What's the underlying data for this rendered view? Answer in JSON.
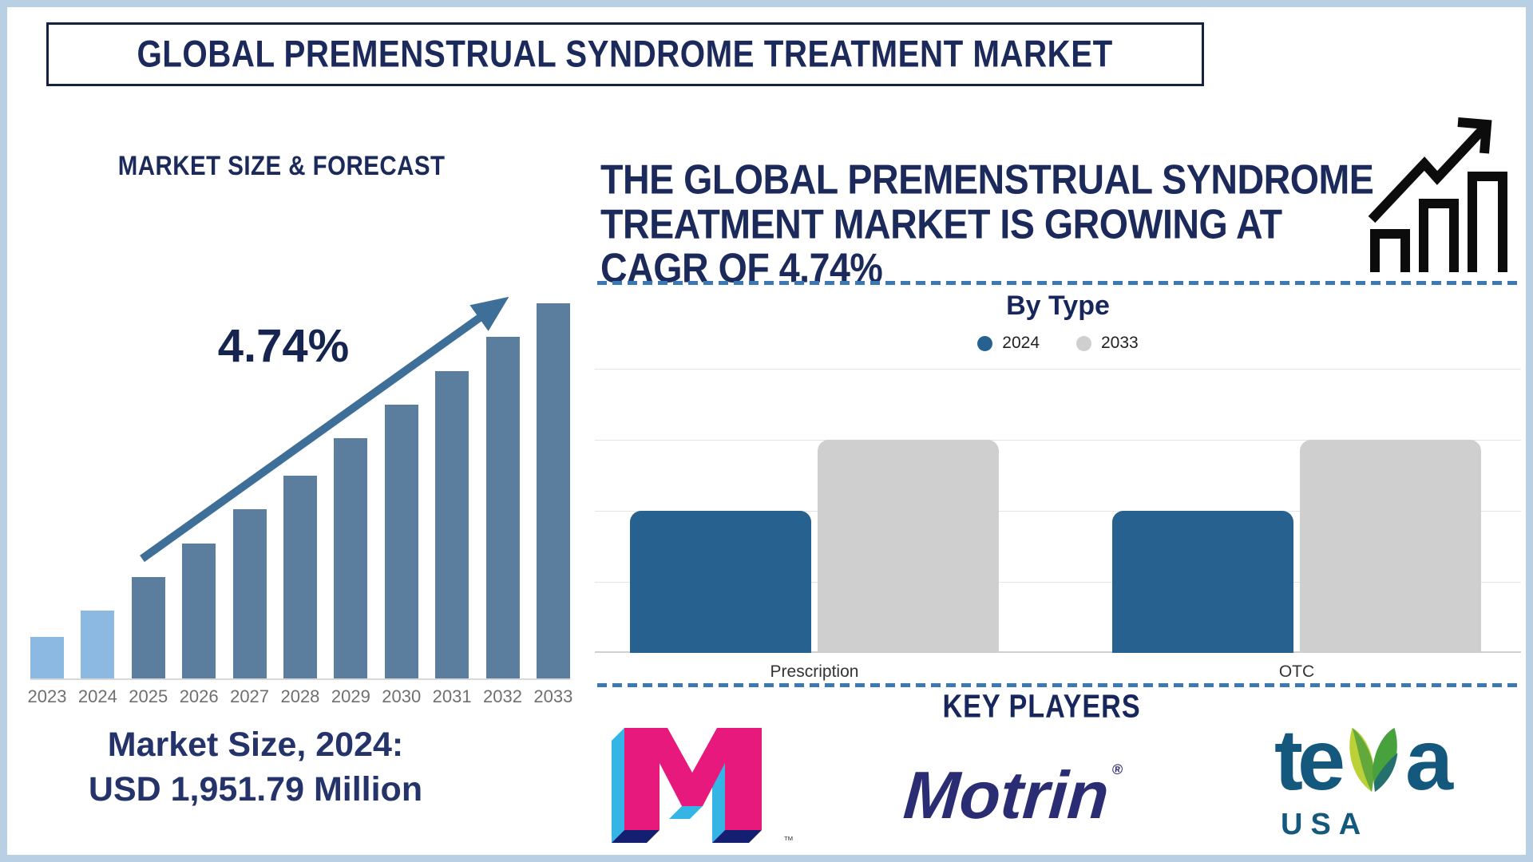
{
  "page": {
    "title": "GLOBAL PREMENSTRUAL SYNDROME TREATMENT MARKET"
  },
  "left_panel": {
    "heading": "MARKET SIZE & FORECAST",
    "cagr": "4.74%",
    "market_size_line1": "Market Size, 2024:",
    "market_size_line2": "USD 1,951.79 Million"
  },
  "right_panel": {
    "headline_line1": "THE GLOBAL PREMENSTRUAL SYNDROME",
    "headline_line2": "TREATMENT MARKET IS GROWING AT",
    "headline_line3": "CAGR OF 4.74%",
    "by_type_title": "By Type",
    "key_players_title": "KEY PLAYERS",
    "players": [
      {
        "label": "M",
        "tm": "™"
      },
      {
        "label": "Motrin",
        "reg": "®"
      },
      {
        "label_te": "te",
        "label_a": "a",
        "sub": "USA"
      }
    ]
  },
  "colors": {
    "navy_text": "#1b2a5b",
    "light_bar": "#8cb9e2",
    "steel_bar": "#5b7e9f",
    "trend_arrow": "#3e6f99",
    "chart_blue_2024": "#27618f",
    "chart_gray_2033": "#cfcfcf",
    "dashed_separator": "#3c79b4",
    "outer_frame": "#b9cfe4",
    "m_logo_magenta": "#e8197d",
    "m_logo_cyan": "#35b4e6",
    "m_logo_navy": "#141f72",
    "motrin_navy": "#2b2d74",
    "teva_teal": "#14587e",
    "teva_leaf_light": "#bcd137",
    "teva_leaf_green": "#47a13d",
    "teva_leaf_dark": "#24706e"
  },
  "chart_data": [
    {
      "type": "bar",
      "title": "MARKET SIZE & FORECAST",
      "categories": [
        "2023",
        "2024",
        "2025",
        "2026",
        "2027",
        "2028",
        "2029",
        "2030",
        "2031",
        "2032",
        "2033"
      ],
      "values": [
        11,
        18,
        27,
        36,
        45,
        54,
        64,
        73,
        82,
        91,
        100
      ],
      "value_note": "no y-axis shown; values are relative bar heights in % of tallest bar",
      "bar_colors": [
        "#8cb9e2",
        "#8cb9e2",
        "#5b7e9f",
        "#5b7e9f",
        "#5b7e9f",
        "#5b7e9f",
        "#5b7e9f",
        "#5b7e9f",
        "#5b7e9f",
        "#5b7e9f",
        "#5b7e9f"
      ],
      "annotation": "4.74%",
      "xlabel": "",
      "ylabel": "",
      "grid": false
    },
    {
      "type": "bar",
      "title": "By Type",
      "categories": [
        "Prescription",
        "OTC"
      ],
      "series": [
        {
          "name": "2024",
          "color": "#27618f",
          "values": [
            50,
            50
          ]
        },
        {
          "name": "2033",
          "color": "#cfcfcf",
          "values": [
            75,
            75
          ]
        }
      ],
      "value_note": "no y-axis shown; values are relative bar heights in % of plot height",
      "legend_position": "top",
      "grid": true
    }
  ]
}
